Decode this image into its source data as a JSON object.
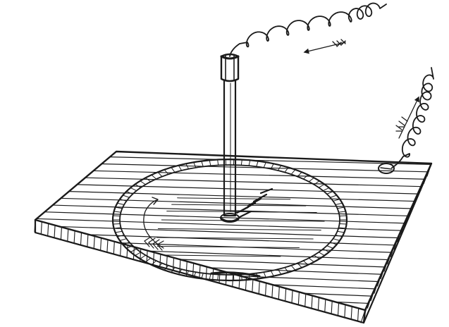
{
  "figure": {
    "subject": "",
    "ink_color": "#1a1a1a",
    "paper_color": "#ffffff"
  }
}
